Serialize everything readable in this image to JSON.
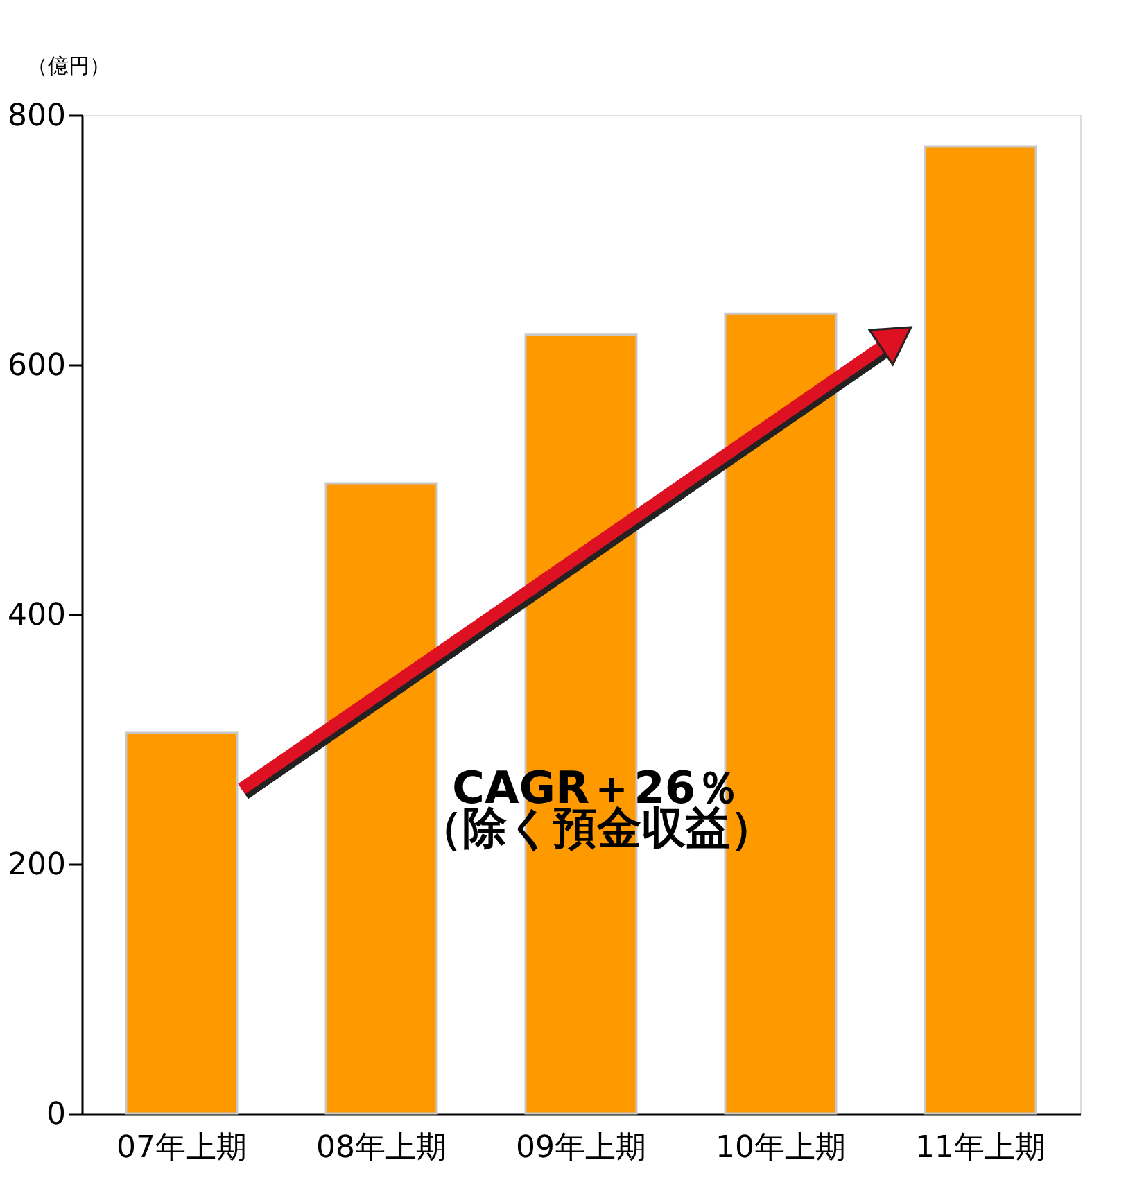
{
  "chart_data": {
    "type": "bar",
    "ylabel": "（億円）",
    "categories": [
      "07年上期",
      "08年上期",
      "09年上期",
      "10年上期",
      "11年上期"
    ],
    "values": [
      305,
      505,
      624,
      641,
      775
    ],
    "color": "#ff9900",
    "ylim": [
      0,
      800
    ],
    "yticks": [
      0,
      200,
      400,
      600,
      800
    ],
    "grid": false,
    "annotations": [
      "CAGR＋26％",
      "（除く預金収益）"
    ]
  }
}
